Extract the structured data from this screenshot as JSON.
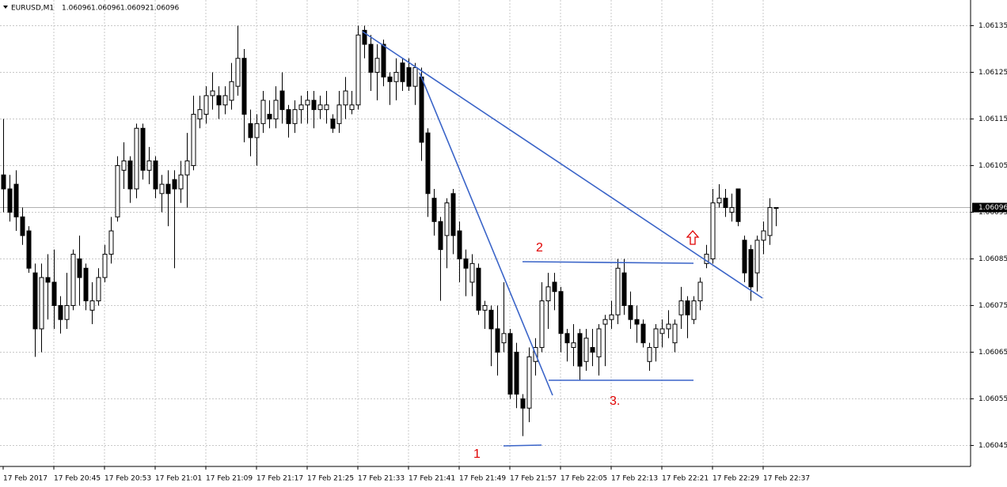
{
  "chart_data": {
    "type": "candlestick",
    "symbol": "EURUSD,M1",
    "categories": [
      "17 Feb 2017",
      null,
      null,
      null,
      null,
      null,
      null,
      null,
      "17 Feb 20:45",
      null,
      null,
      null,
      null,
      null,
      null,
      null,
      "17 Feb 20:53",
      null,
      null,
      null,
      null,
      null,
      null,
      null,
      "17 Feb 21:01",
      null,
      null,
      null,
      null,
      null,
      null,
      null,
      "17 Feb 21:09",
      null,
      null,
      null,
      null,
      null,
      null,
      null,
      "17 Feb 21:17",
      null,
      null,
      null,
      null,
      null,
      null,
      null,
      "17 Feb 21:25",
      null,
      null,
      null,
      null,
      null,
      null,
      null,
      "17 Feb 21:33",
      null,
      null,
      null,
      null,
      null,
      null,
      null,
      "17 Feb 21:41",
      null,
      null,
      null,
      null,
      null,
      null,
      null,
      "17 Feb 21:49",
      null,
      null,
      null,
      null,
      null,
      null,
      null,
      "17 Feb 21:57",
      null,
      null,
      null,
      null,
      null,
      null,
      null,
      "17 Feb 22:05",
      null,
      null,
      null,
      null,
      null,
      null,
      null,
      "17 Feb 22:13",
      null,
      null,
      null,
      null,
      null,
      null,
      null,
      "17 Feb 22:21",
      null,
      null,
      null,
      null,
      null,
      null,
      null,
      "17 Feb 22:29",
      null,
      null,
      null,
      null,
      null,
      null,
      null,
      "17 Feb 22:37",
      null,
      null
    ],
    "open": [
      1.06103,
      1.061,
      1.06101,
      1.06094,
      1.06091,
      1.06082,
      1.0607,
      1.06081,
      1.0608,
      1.06075,
      1.06072,
      1.06075,
      1.06085,
      1.06083,
      1.06074,
      1.06076,
      1.06081,
      1.06086,
      1.06094,
      1.06104,
      1.06106,
      1.061,
      1.06113,
      1.06104,
      1.06106,
      1.06099,
      1.06101,
      1.06102,
      1.061,
      1.06103,
      1.06105,
      1.06115,
      1.06116,
      1.0612,
      1.0612,
      1.06118,
      1.06119,
      1.06122,
      1.06128,
      1.06114,
      1.06111,
      1.06114,
      1.06116,
      1.06115,
      1.06121,
      1.06117,
      1.06114,
      1.06117,
      1.06118,
      1.06119,
      1.06117,
      1.06117,
      1.06115,
      1.06114,
      1.06118,
      1.06117,
      1.06118,
      1.06134,
      1.06131,
      1.06125,
      1.06131,
      1.06124,
      1.06123,
      1.06127,
      1.06126,
      1.06122,
      1.06124,
      1.06112,
      1.06098,
      1.06093,
      1.0609,
      1.06099,
      1.06091,
      1.06085,
      1.0608,
      1.06083,
      1.06074,
      1.06074,
      1.0607,
      1.06067,
      1.06069,
      1.06065,
      1.06055,
      1.06053,
      1.06063,
      1.06066,
      1.06076,
      1.0608,
      1.06078,
      1.06069,
      1.06066,
      1.06069,
      1.06063,
      1.06066,
      1.06064,
      1.06071,
      1.06072,
      1.06073,
      1.06082,
      1.06075,
      1.06072,
      1.06071,
      1.06063,
      1.06066,
      1.06069,
      1.0607,
      1.06067,
      1.06073,
      1.06076,
      1.06072,
      1.06076,
      1.06084,
      1.06085,
      1.06097,
      1.06098,
      1.06095,
      1.061,
      1.06089,
      1.06087,
      1.06082,
      1.06089,
      1.0609,
      1.06096
    ],
    "high": [
      1.06115,
      1.06103,
      1.06104,
      1.06096,
      1.06092,
      1.06084,
      1.06084,
      1.06086,
      1.06087,
      1.06077,
      1.06082,
      1.06087,
      1.0609,
      1.06084,
      1.0608,
      1.06083,
      1.06088,
      1.06094,
      1.06107,
      1.0611,
      1.06107,
      1.06114,
      1.06114,
      1.06109,
      1.06107,
      1.06103,
      1.06104,
      1.06104,
      1.06106,
      1.06112,
      1.0612,
      1.0612,
      1.06122,
      1.06125,
      1.06122,
      1.06122,
      1.06127,
      1.06135,
      1.0613,
      1.06117,
      1.06116,
      1.06121,
      1.06119,
      1.06122,
      1.06125,
      1.06118,
      1.06119,
      1.0612,
      1.06121,
      1.06121,
      1.0612,
      1.06121,
      1.06116,
      1.06121,
      1.06124,
      1.06121,
      1.06135,
      1.06135,
      1.06133,
      1.06131,
      1.06132,
      1.06125,
      1.06128,
      1.06128,
      1.06128,
      1.06127,
      1.06126,
      1.06113,
      1.061,
      1.06094,
      1.06098,
      1.061,
      1.06093,
      1.06087,
      1.06086,
      1.06084,
      1.06076,
      1.06075,
      1.06075,
      1.0608,
      1.0607,
      1.06067,
      1.06056,
      1.06066,
      1.06068,
      1.0608,
      1.06082,
      1.06082,
      1.06079,
      1.0607,
      1.06071,
      1.0607,
      1.0607,
      1.0607,
      1.06071,
      1.06073,
      1.06076,
      1.06085,
      1.06085,
      1.06078,
      1.06075,
      1.06072,
      1.06067,
      1.06071,
      1.06072,
      1.06074,
      1.06072,
      1.06079,
      1.06077,
      1.06077,
      1.06081,
      1.06088,
      1.061,
      1.06101,
      1.061,
      1.06099,
      1.061,
      1.0609,
      1.06088,
      1.0609,
      1.06093,
      1.06098,
      1.06096
    ],
    "low": [
      1.06095,
      1.06093,
      1.06091,
      1.06088,
      1.06082,
      1.06064,
      1.06065,
      1.06072,
      1.0607,
      1.06069,
      1.0607,
      1.06074,
      1.06075,
      1.06074,
      1.06071,
      1.06075,
      1.0608,
      1.06084,
      1.06093,
      1.061,
      1.06097,
      1.06098,
      1.06102,
      1.06101,
      1.06098,
      1.06095,
      1.06092,
      1.06083,
      1.06097,
      1.06096,
      1.06104,
      1.06113,
      1.06114,
      1.06117,
      1.06115,
      1.06116,
      1.06117,
      1.0612,
      1.0611,
      1.06107,
      1.06105,
      1.06112,
      1.06113,
      1.06113,
      1.06114,
      1.06111,
      1.06112,
      1.06114,
      1.06114,
      1.06113,
      1.06115,
      1.06114,
      1.06112,
      1.06112,
      1.06115,
      1.06116,
      1.06117,
      1.06128,
      1.06121,
      1.06119,
      1.06122,
      1.06118,
      1.06119,
      1.06121,
      1.06121,
      1.06118,
      1.06106,
      1.06094,
      1.0609,
      1.06076,
      1.06083,
      1.06086,
      1.0608,
      1.06077,
      1.06077,
      1.06073,
      1.0607,
      1.06062,
      1.0606,
      1.06065,
      1.06055,
      1.06053,
      1.06047,
      1.0605,
      1.0606,
      1.06065,
      1.0607,
      1.06074,
      1.06065,
      1.06063,
      1.06062,
      1.06059,
      1.06061,
      1.06062,
      1.0606,
      1.06062,
      1.0607,
      1.06071,
      1.06073,
      1.0607,
      1.06067,
      1.06066,
      1.06061,
      1.06063,
      1.06066,
      1.06068,
      1.06065,
      1.0607,
      1.06068,
      1.06071,
      1.06074,
      1.06083,
      1.06084,
      1.06096,
      1.06094,
      1.06093,
      1.06092,
      1.0608,
      1.06076,
      1.06078,
      1.06086,
      1.06088,
      1.06092
    ],
    "close": [
      1.061,
      1.06095,
      1.06094,
      1.0609,
      1.06083,
      1.0607,
      1.06081,
      1.0608,
      1.06075,
      1.06072,
      1.06075,
      1.06086,
      1.06081,
      1.06076,
      1.06076,
      1.06081,
      1.06086,
      1.06091,
      1.06105,
      1.06106,
      1.061,
      1.06113,
      1.06104,
      1.06106,
      1.061,
      1.06101,
      1.06099,
      1.061,
      1.06103,
      1.06106,
      1.06116,
      1.06117,
      1.0612,
      1.06121,
      1.06118,
      1.0612,
      1.06123,
      1.06128,
      1.06116,
      1.06111,
      1.06114,
      1.06119,
      1.06115,
      1.06119,
      1.06117,
      1.06114,
      1.06117,
      1.06118,
      1.06119,
      1.06117,
      1.06118,
      1.06118,
      1.06113,
      1.06118,
      1.06121,
      1.06118,
      1.06133,
      1.06131,
      1.06125,
      1.06128,
      1.06124,
      1.06123,
      1.06125,
      1.06123,
      1.06122,
      1.06126,
      1.0611,
      1.06099,
      1.06093,
      1.06087,
      1.06097,
      1.0609,
      1.06085,
      1.06083,
      1.06084,
      1.06074,
      1.06075,
      1.0607,
      1.06065,
      1.06069,
      1.06056,
      1.06056,
      1.06053,
      1.06064,
      1.06066,
      1.06076,
      1.06079,
      1.06078,
      1.06069,
      1.06067,
      1.06067,
      1.06062,
      1.06068,
      1.06065,
      1.0607,
      1.06072,
      1.06073,
      1.06083,
      1.06075,
      1.06072,
      1.06071,
      1.06067,
      1.06066,
      1.0607,
      1.0607,
      1.06071,
      1.06071,
      1.06076,
      1.06073,
      1.06076,
      1.0608,
      1.06086,
      1.06097,
      1.06098,
      1.06096,
      1.06096,
      1.06093,
      1.06082,
      1.06079,
      1.06089,
      1.06091,
      1.06096,
      1.06096
    ],
    "up_color": "#ffffff",
    "down_color": "#000000",
    "ylim": [
      1.060405,
      1.061405
    ],
    "yticks": [
      1.06045,
      1.06055,
      1.06065,
      1.06075,
      1.06085,
      1.06095,
      1.06105,
      1.06115,
      1.06125,
      1.06135
    ],
    "grid": true,
    "annotations": [
      "1",
      "2",
      "3."
    ]
  }
}
